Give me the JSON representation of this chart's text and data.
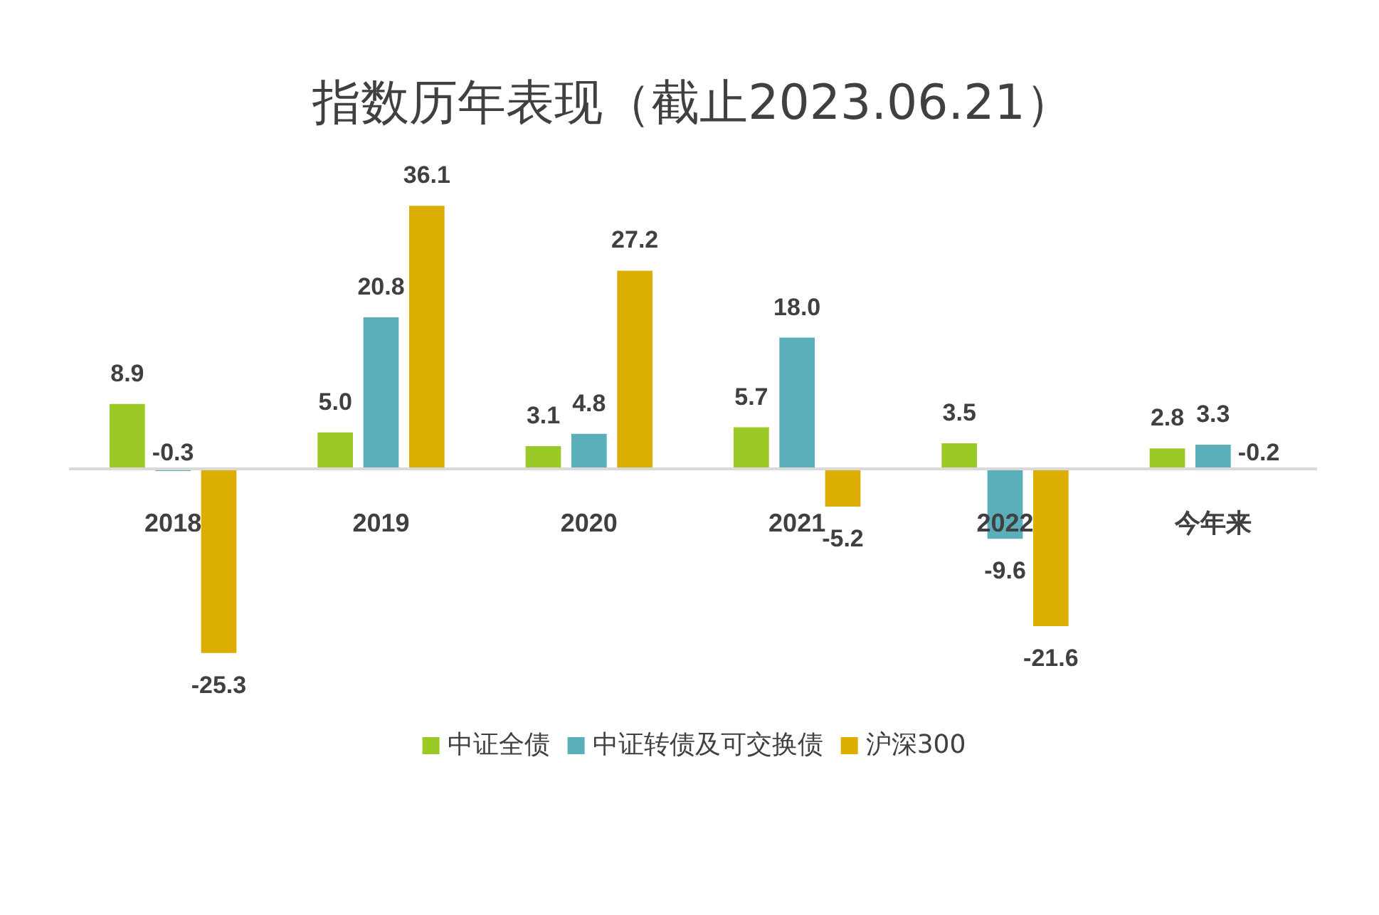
{
  "chart_data": {
    "type": "bar",
    "title": "指数历年表现（截止2023.06.21）",
    "categories": [
      "2018",
      "2019",
      "2020",
      "2021",
      "2022",
      "今年来"
    ],
    "series": [
      {
        "name": "中证全债",
        "color": "#9bc925",
        "values": [
          8.9,
          5.0,
          3.1,
          5.7,
          3.5,
          2.8
        ],
        "value_labels": [
          "8.9",
          "5.0",
          "3.1",
          "5.7",
          "3.5",
          "2.8"
        ]
      },
      {
        "name": "中证转债及可交换债",
        "color": "#5aafba",
        "values": [
          -0.3,
          20.8,
          4.8,
          18.0,
          -9.6,
          3.3
        ],
        "value_labels": [
          "-0.3",
          "20.8",
          "4.8",
          "18.0",
          "-9.6",
          "3.3"
        ]
      },
      {
        "name": "沪深300",
        "color": "#dcae02",
        "values": [
          -25.3,
          36.1,
          27.2,
          -5.2,
          -21.6,
          -0.2
        ],
        "value_labels": [
          "-25.3",
          "36.1",
          "27.2",
          "-5.2",
          "-21.6",
          "-0.2"
        ]
      }
    ],
    "legend": "bottom",
    "tick_labels": "x"
  }
}
